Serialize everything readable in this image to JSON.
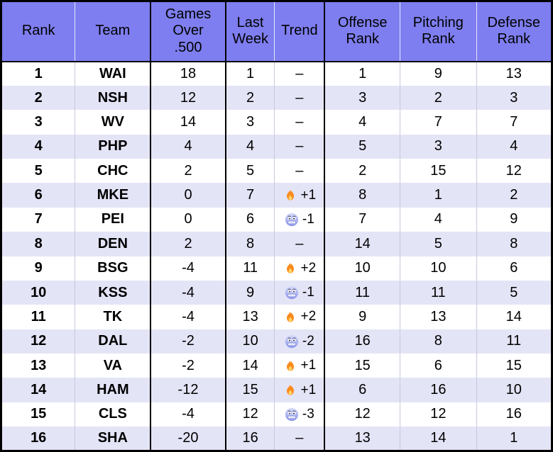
{
  "colors": {
    "header_bg": "#7e7ef0",
    "stripe_bg": "#e4e4f7",
    "row_bg": "#ffffff",
    "border_black": "#000000",
    "separator_light_body": "#c9c9dd",
    "separator_light_header": "#e6e6fc",
    "text": "#000000",
    "fire_orange": "#fb8b1f",
    "fire_yellow": "#ffd564",
    "cold_face_top": "#d6dcf8",
    "cold_face_bottom": "#8d96ea"
  },
  "icons": {
    "trend_up": "fire-icon",
    "trend_down": "cold-face-icon"
  },
  "table": {
    "columns": [
      {
        "label": "Rank"
      },
      {
        "label": "Team"
      },
      {
        "label": "Games Over .500"
      },
      {
        "label": "Last Week"
      },
      {
        "label": "Trend"
      },
      {
        "label": "Offense Rank"
      },
      {
        "label": "Pitching Rank"
      },
      {
        "label": "Defense Rank"
      }
    ],
    "rows": [
      {
        "rank": "1",
        "team": "WAI",
        "games_over_500": "18",
        "last_week": "1",
        "trend": {
          "icon": null,
          "label": "–"
        },
        "offense_rank": "1",
        "pitching_rank": "9",
        "defense_rank": "13"
      },
      {
        "rank": "2",
        "team": "NSH",
        "games_over_500": "12",
        "last_week": "2",
        "trend": {
          "icon": null,
          "label": "–"
        },
        "offense_rank": "3",
        "pitching_rank": "2",
        "defense_rank": "3"
      },
      {
        "rank": "3",
        "team": "WV",
        "games_over_500": "14",
        "last_week": "3",
        "trend": {
          "icon": null,
          "label": "–"
        },
        "offense_rank": "4",
        "pitching_rank": "7",
        "defense_rank": "7"
      },
      {
        "rank": "4",
        "team": "PHP",
        "games_over_500": "4",
        "last_week": "4",
        "trend": {
          "icon": null,
          "label": "–"
        },
        "offense_rank": "5",
        "pitching_rank": "3",
        "defense_rank": "4"
      },
      {
        "rank": "5",
        "team": "CHC",
        "games_over_500": "2",
        "last_week": "5",
        "trend": {
          "icon": null,
          "label": "–"
        },
        "offense_rank": "2",
        "pitching_rank": "15",
        "defense_rank": "12"
      },
      {
        "rank": "6",
        "team": "MKE",
        "games_over_500": "0",
        "last_week": "7",
        "trend": {
          "icon": "fire",
          "label": "+1"
        },
        "offense_rank": "8",
        "pitching_rank": "1",
        "defense_rank": "2"
      },
      {
        "rank": "7",
        "team": "PEI",
        "games_over_500": "0",
        "last_week": "6",
        "trend": {
          "icon": "cold",
          "label": "-1"
        },
        "offense_rank": "7",
        "pitching_rank": "4",
        "defense_rank": "9"
      },
      {
        "rank": "8",
        "team": "DEN",
        "games_over_500": "2",
        "last_week": "8",
        "trend": {
          "icon": null,
          "label": "–"
        },
        "offense_rank": "14",
        "pitching_rank": "5",
        "defense_rank": "8"
      },
      {
        "rank": "9",
        "team": "BSG",
        "games_over_500": "-4",
        "last_week": "11",
        "trend": {
          "icon": "fire",
          "label": "+2"
        },
        "offense_rank": "10",
        "pitching_rank": "10",
        "defense_rank": "6"
      },
      {
        "rank": "10",
        "team": "KSS",
        "games_over_500": "-4",
        "last_week": "9",
        "trend": {
          "icon": "cold",
          "label": "-1"
        },
        "offense_rank": "11",
        "pitching_rank": "11",
        "defense_rank": "5"
      },
      {
        "rank": "11",
        "team": "TK",
        "games_over_500": "-4",
        "last_week": "13",
        "trend": {
          "icon": "fire",
          "label": "+2"
        },
        "offense_rank": "9",
        "pitching_rank": "13",
        "defense_rank": "14"
      },
      {
        "rank": "12",
        "team": "DAL",
        "games_over_500": "-2",
        "last_week": "10",
        "trend": {
          "icon": "cold",
          "label": "-2"
        },
        "offense_rank": "16",
        "pitching_rank": "8",
        "defense_rank": "11"
      },
      {
        "rank": "13",
        "team": "VA",
        "games_over_500": "-2",
        "last_week": "14",
        "trend": {
          "icon": "fire",
          "label": "+1"
        },
        "offense_rank": "15",
        "pitching_rank": "6",
        "defense_rank": "15"
      },
      {
        "rank": "14",
        "team": "HAM",
        "games_over_500": "-12",
        "last_week": "15",
        "trend": {
          "icon": "fire",
          "label": "+1"
        },
        "offense_rank": "6",
        "pitching_rank": "16",
        "defense_rank": "10"
      },
      {
        "rank": "15",
        "team": "CLS",
        "games_over_500": "-4",
        "last_week": "12",
        "trend": {
          "icon": "cold",
          "label": "-3"
        },
        "offense_rank": "12",
        "pitching_rank": "12",
        "defense_rank": "16"
      },
      {
        "rank": "16",
        "team": "SHA",
        "games_over_500": "-20",
        "last_week": "16",
        "trend": {
          "icon": null,
          "label": "–"
        },
        "offense_rank": "13",
        "pitching_rank": "14",
        "defense_rank": "1"
      }
    ]
  },
  "chart_data": {
    "type": "table",
    "columns": [
      "Rank",
      "Team",
      "Games Over .500",
      "Last Week",
      "Trend",
      "Offense Rank",
      "Pitching Rank",
      "Defense Rank"
    ],
    "rows": [
      [
        "1",
        "WAI",
        "18",
        "1",
        "–",
        "1",
        "9",
        "13"
      ],
      [
        "2",
        "NSH",
        "12",
        "2",
        "–",
        "3",
        "2",
        "3"
      ],
      [
        "3",
        "WV",
        "14",
        "3",
        "–",
        "4",
        "7",
        "7"
      ],
      [
        "4",
        "PHP",
        "4",
        "4",
        "–",
        "5",
        "3",
        "4"
      ],
      [
        "5",
        "CHC",
        "2",
        "5",
        "–",
        "2",
        "15",
        "12"
      ],
      [
        "6",
        "MKE",
        "0",
        "7",
        "🔥 +1",
        "8",
        "1",
        "2"
      ],
      [
        "7",
        "PEI",
        "0",
        "6",
        "🥶 -1",
        "7",
        "4",
        "9"
      ],
      [
        "8",
        "DEN",
        "2",
        "8",
        "–",
        "14",
        "5",
        "8"
      ],
      [
        "9",
        "BSG",
        "-4",
        "11",
        "🔥 +2",
        "10",
        "10",
        "6"
      ],
      [
        "10",
        "KSS",
        "-4",
        "9",
        "🥶 -1",
        "11",
        "11",
        "5"
      ],
      [
        "11",
        "TK",
        "-4",
        "13",
        "🔥 +2",
        "9",
        "13",
        "14"
      ],
      [
        "12",
        "DAL",
        "-2",
        "10",
        "🥶 -2",
        "16",
        "8",
        "11"
      ],
      [
        "13",
        "VA",
        "-2",
        "14",
        "🔥 +1",
        "15",
        "6",
        "15"
      ],
      [
        "14",
        "HAM",
        "-12",
        "15",
        "🔥 +1",
        "6",
        "16",
        "10"
      ],
      [
        "15",
        "CLS",
        "-4",
        "12",
        "🥶 -3",
        "12",
        "12",
        "16"
      ],
      [
        "16",
        "SHA",
        "-20",
        "16",
        "–",
        "13",
        "14",
        "1"
      ]
    ]
  }
}
